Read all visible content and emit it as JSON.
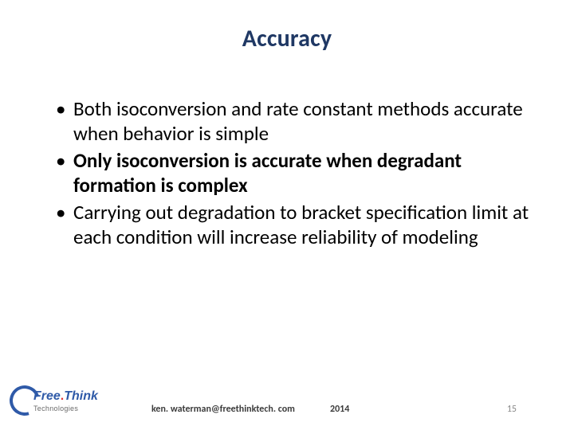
{
  "title": "Accuracy",
  "bullets": [
    {
      "text": "Both isoconversion and rate constant methods accurate when behavior is simple",
      "bold": false
    },
    {
      "text": "Only isoconversion is accurate when degradant formation is complex",
      "bold": true
    },
    {
      "text": "Carrying out degradation to bracket specification limit at each condition will increase reliability of modeling",
      "bold": false
    }
  ],
  "logo": {
    "word1": "Free",
    "dot": ".",
    "word2": "Think",
    "sub": "Technologies"
  },
  "footer": {
    "email": "ken. waterman@freethinktech. com",
    "year": "2014",
    "page": "15"
  },
  "colors": {
    "title": "#1f3864",
    "body": "#000000",
    "logo_blue": "#2f5aa8",
    "logo_red": "#e03a3a",
    "footer_text": "#3b3b3b",
    "page_num": "#8a8a8a",
    "background": "#ffffff"
  },
  "fonts": {
    "title_size_pt": 30,
    "body_size_pt": 25,
    "footer_size_pt": 12
  }
}
